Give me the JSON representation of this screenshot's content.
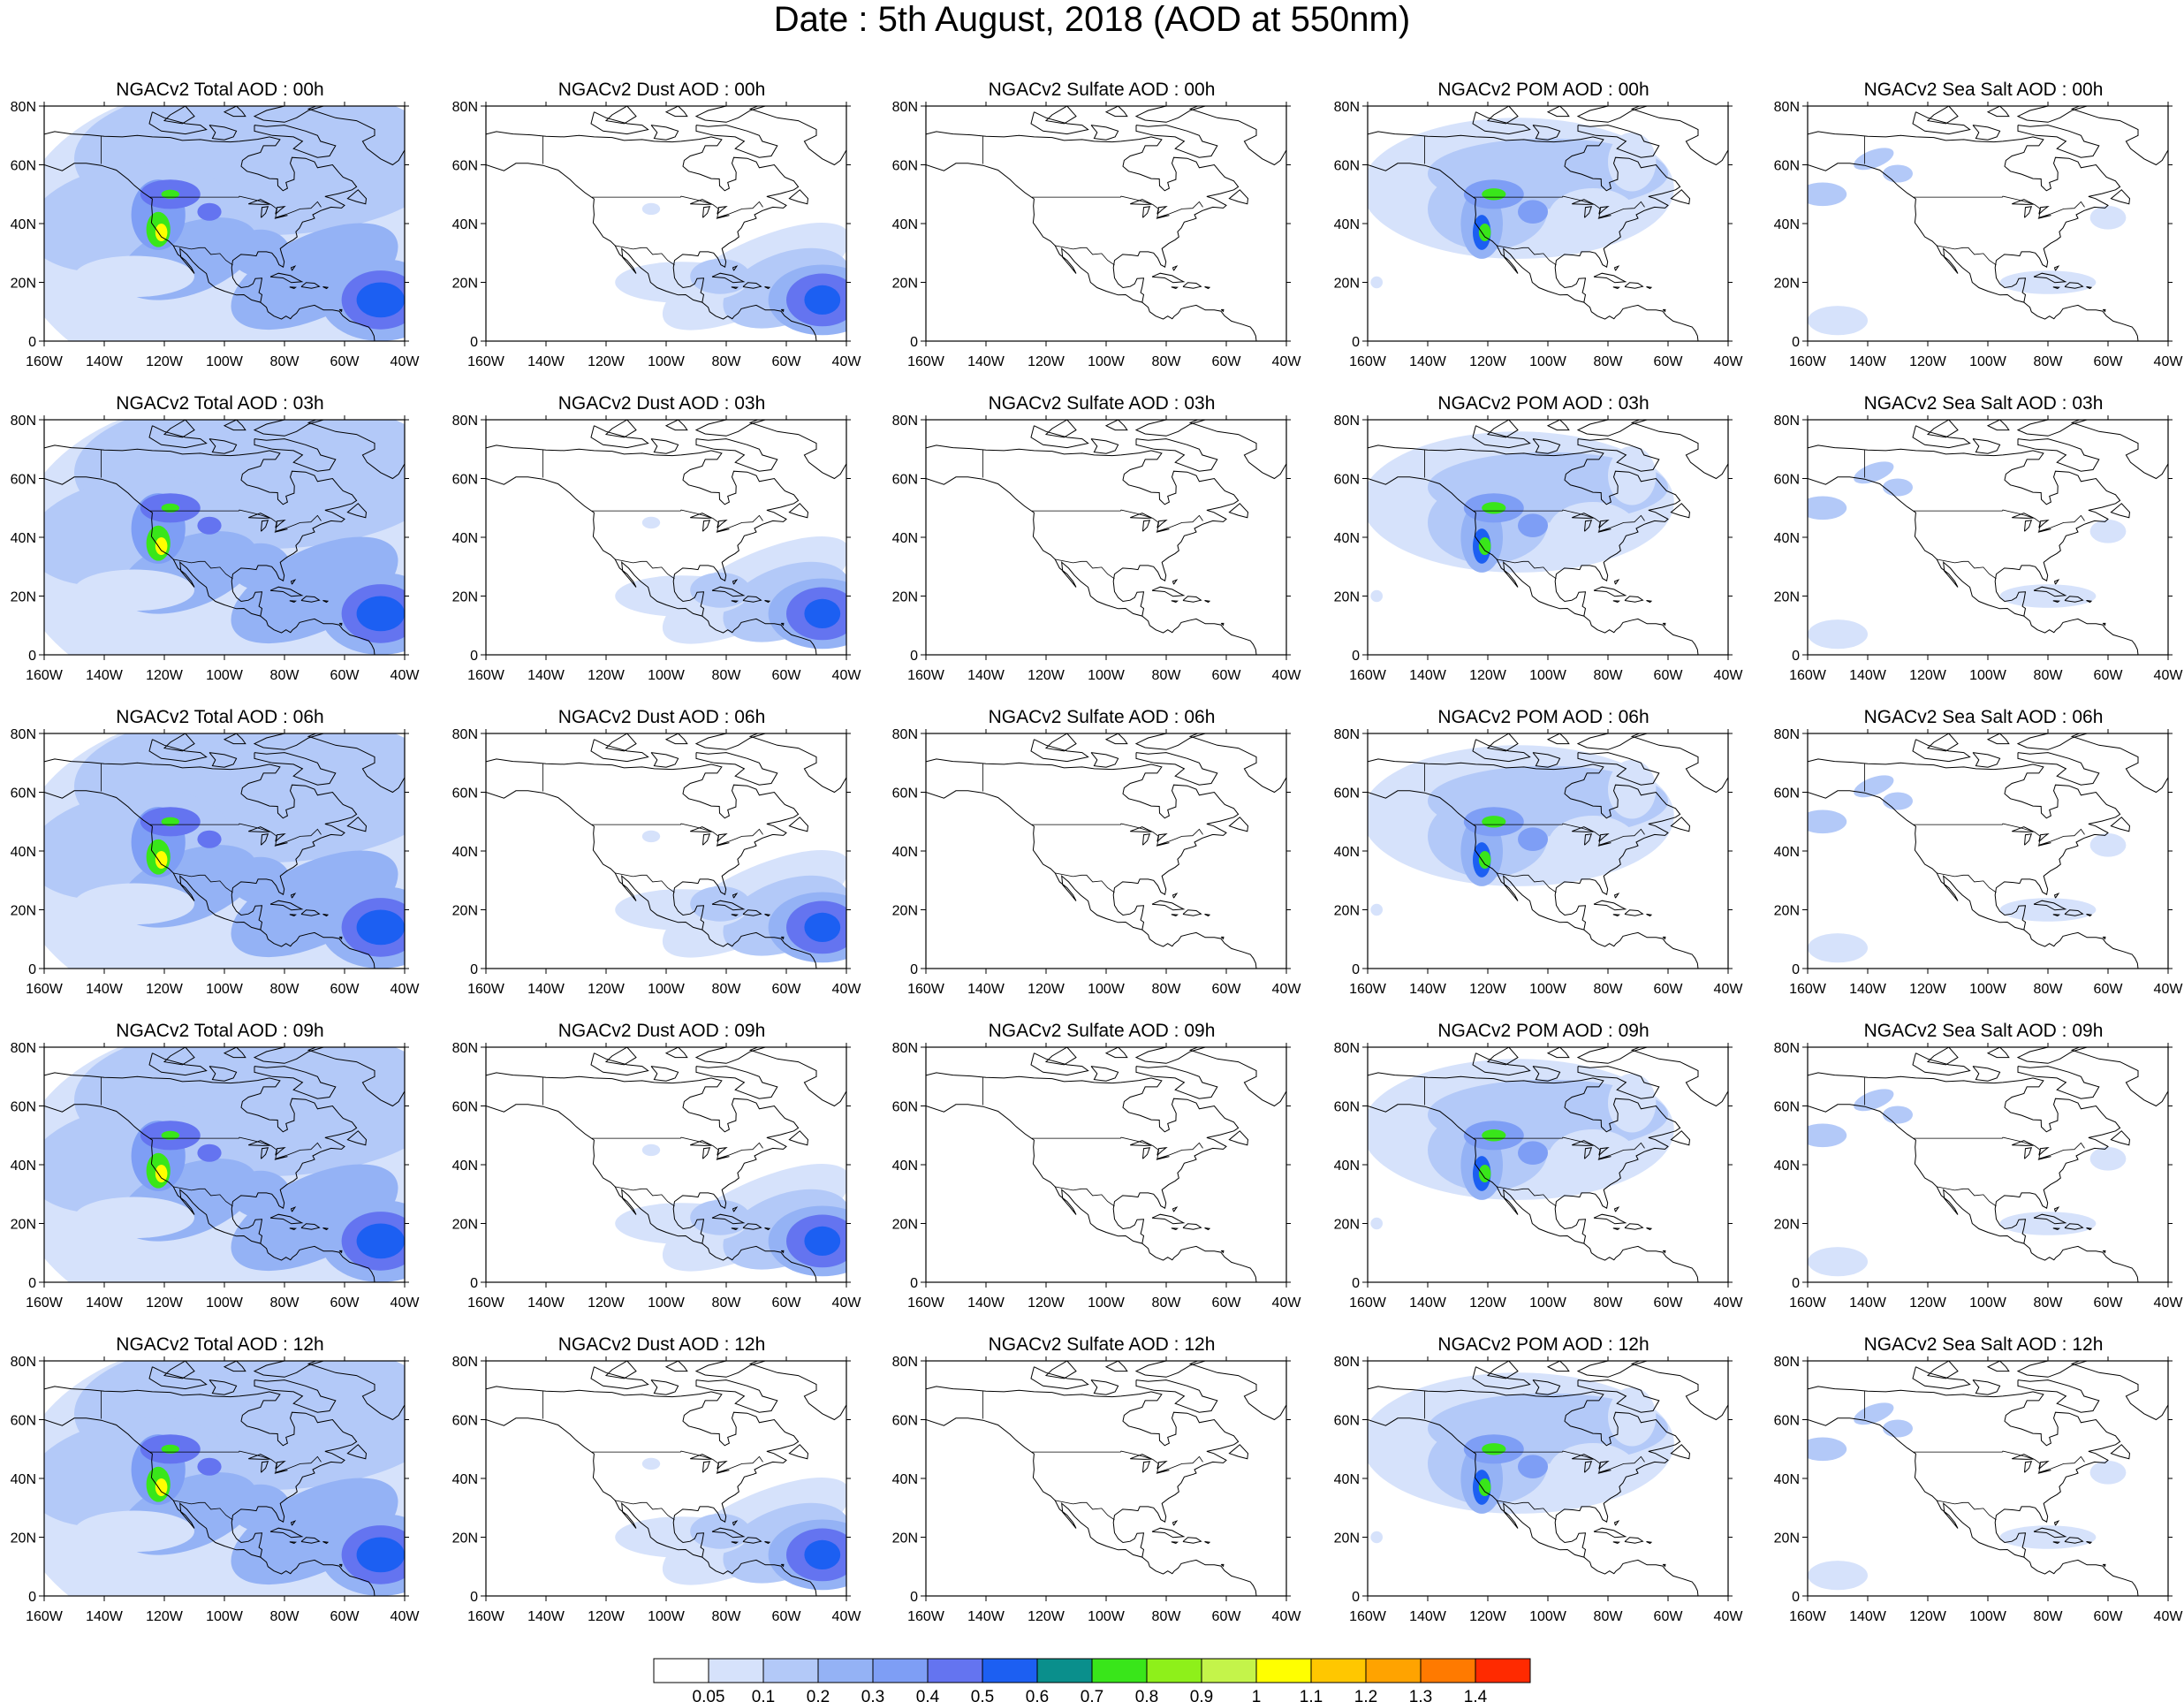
{
  "title": "Date : 5th August, 2018 (AOD at 550nm)",
  "map": {
    "lon_ticks": [
      "160W",
      "140W",
      "120W",
      "100W",
      "80W",
      "60W",
      "40W"
    ],
    "lat_ticks": [
      "0",
      "20N",
      "40N",
      "60N",
      "80N"
    ],
    "lon_range": [
      -160,
      -40
    ],
    "lat_range": [
      0,
      80
    ]
  },
  "panels": [
    [
      {
        "title": "NGACv2 Total AOD : 00h",
        "species": "total"
      },
      {
        "title": "NGACv2 Dust AOD : 00h",
        "species": "dust"
      },
      {
        "title": "NGACv2 Sulfate AOD : 00h",
        "species": "sulfate"
      },
      {
        "title": "NGACv2 POM AOD : 00h",
        "species": "pom"
      },
      {
        "title": "NGACv2 Sea Salt AOD : 00h",
        "species": "seasalt"
      }
    ],
    [
      {
        "title": "NGACv2 Total AOD : 03h",
        "species": "total"
      },
      {
        "title": "NGACv2 Dust AOD : 03h",
        "species": "dust"
      },
      {
        "title": "NGACv2 Sulfate AOD : 03h",
        "species": "sulfate"
      },
      {
        "title": "NGACv2 POM AOD : 03h",
        "species": "pom"
      },
      {
        "title": "NGACv2 Sea Salt AOD : 03h",
        "species": "seasalt"
      }
    ],
    [
      {
        "title": "NGACv2 Total AOD : 06h",
        "species": "total"
      },
      {
        "title": "NGACv2 Dust AOD : 06h",
        "species": "dust"
      },
      {
        "title": "NGACv2 Sulfate AOD : 06h",
        "species": "sulfate"
      },
      {
        "title": "NGACv2 POM AOD : 06h",
        "species": "pom"
      },
      {
        "title": "NGACv2 Sea Salt AOD : 06h",
        "species": "seasalt"
      }
    ],
    [
      {
        "title": "NGACv2 Total AOD : 09h",
        "species": "total"
      },
      {
        "title": "NGACv2 Dust AOD : 09h",
        "species": "dust"
      },
      {
        "title": "NGACv2 Sulfate AOD : 09h",
        "species": "sulfate"
      },
      {
        "title": "NGACv2 POM AOD : 09h",
        "species": "pom"
      },
      {
        "title": "NGACv2 Sea Salt  AOD : 09h",
        "species": "seasalt"
      }
    ],
    [
      {
        "title": "NGACv2 Total AOD  : 12h",
        "species": "total"
      },
      {
        "title": "NGACv2 Dust AOD : 12h",
        "species": "dust"
      },
      {
        "title": "NGACv2 Sulfate AOD : 12h",
        "species": "sulfate"
      },
      {
        "title": "NGACv2 POM  AOD : 12h",
        "species": "pom"
      },
      {
        "title": "NGACv2 Sea Salt  AOD : 12h",
        "species": "seasalt"
      }
    ]
  ],
  "colorbar": {
    "labels": [
      "0.05",
      "0.1",
      "0.2",
      "0.3",
      "0.4",
      "0.5",
      "0.6",
      "0.7",
      "0.8",
      "0.9",
      "1",
      "1.1",
      "1.2",
      "1.3",
      "1.4"
    ],
    "colors": [
      "#ffffff",
      "#d6e2fb",
      "#b3c9f8",
      "#94b2f5",
      "#7e9ef5",
      "#6474f0",
      "#1c5ff2",
      "#0a8f8c",
      "#39e61a",
      "#8ef01a",
      "#c4f44a",
      "#ffff00",
      "#ffc700",
      "#ffa300",
      "#ff7a00",
      "#ff2a00"
    ]
  }
}
